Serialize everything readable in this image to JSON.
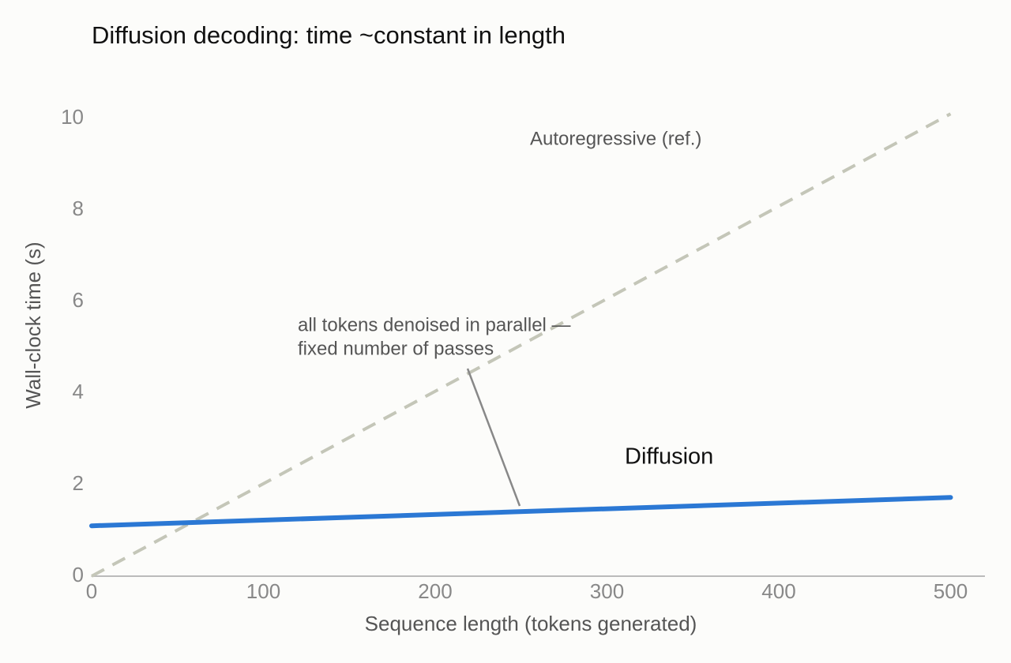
{
  "chart_data": {
    "type": "line",
    "title": "Diffusion decoding: time ~constant in length",
    "xlabel": "Sequence length (tokens generated)",
    "ylabel": "Wall-clock time (s)",
    "x": [
      0,
      500
    ],
    "series": [
      {
        "name": "Autoregressive (ref.)",
        "color": "#c4c6b8",
        "dashed": true,
        "values": [
          0,
          10.1
        ]
      },
      {
        "name": "Diffusion",
        "color": "#2b78d4",
        "dashed": false,
        "values": [
          1.1,
          1.72
        ]
      }
    ],
    "annotation": [
      "all tokens denoised in parallel —",
      "fixed number of passes"
    ],
    "xlim": [
      0,
      520
    ],
    "xticks": [
      0,
      100,
      200,
      300,
      400,
      500
    ],
    "ylim": [
      0,
      10.5
    ],
    "yticks": [
      0,
      2,
      4,
      6,
      8,
      10
    ],
    "grid": false
  }
}
